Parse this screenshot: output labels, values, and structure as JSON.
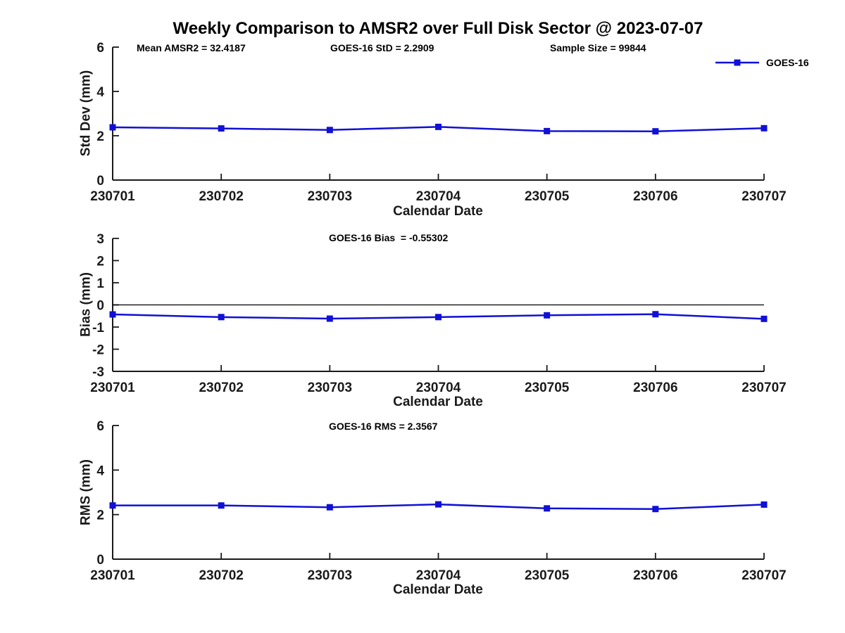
{
  "title": "Weekly Comparison to AMSR2 over Full Disk Sector @ 2023-07-07",
  "accent_color": "#1010d6",
  "chart_data": [
    {
      "type": "line",
      "title": "",
      "categories": [
        "230701",
        "230702",
        "230703",
        "230704",
        "230705",
        "230706",
        "230707"
      ],
      "series": [
        {
          "name": "GOES-16",
          "color": "#1010d6",
          "marker": "square",
          "values": [
            2.38,
            2.33,
            2.26,
            2.4,
            2.21,
            2.2,
            2.34
          ]
        }
      ],
      "xlabel": "Calendar Date",
      "ylabel": "Std Dev (mm)",
      "ylim": [
        0,
        6
      ],
      "yticks": [
        0,
        2,
        4,
        6
      ],
      "grid": false,
      "zero_line": false,
      "annotations": [
        "Mean AMSR2 = 32.4187",
        "GOES-16 StD = 2.2909",
        "Sample Size = 99844"
      ],
      "legend": {
        "label": "GOES-16",
        "position": "top-right",
        "box": false
      }
    },
    {
      "type": "line",
      "title": "GOES-16 Bias  = -0.55302",
      "categories": [
        "230701",
        "230702",
        "230703",
        "230704",
        "230705",
        "230706",
        "230707"
      ],
      "series": [
        {
          "name": "GOES-16",
          "color": "#1010d6",
          "marker": "square",
          "values": [
            -0.43,
            -0.55,
            -0.62,
            -0.55,
            -0.47,
            -0.42,
            -0.63
          ]
        }
      ],
      "xlabel": "Calendar Date",
      "ylabel": "Bias (mm)",
      "ylim": [
        -3,
        3
      ],
      "yticks": [
        -3,
        -2,
        -1,
        0,
        1,
        2,
        3
      ],
      "grid": false,
      "zero_line": true
    },
    {
      "type": "line",
      "title": "GOES-16 RMS = 2.3567",
      "categories": [
        "230701",
        "230702",
        "230703",
        "230704",
        "230705",
        "230706",
        "230707"
      ],
      "series": [
        {
          "name": "GOES-16",
          "color": "#1010d6",
          "marker": "square",
          "values": [
            2.41,
            2.41,
            2.33,
            2.46,
            2.28,
            2.25,
            2.45
          ]
        }
      ],
      "xlabel": "Calendar Date",
      "ylabel": "RMS (mm)",
      "ylim": [
        0,
        6
      ],
      "yticks": [
        0,
        2,
        4,
        6
      ],
      "grid": false,
      "zero_line": false
    }
  ]
}
